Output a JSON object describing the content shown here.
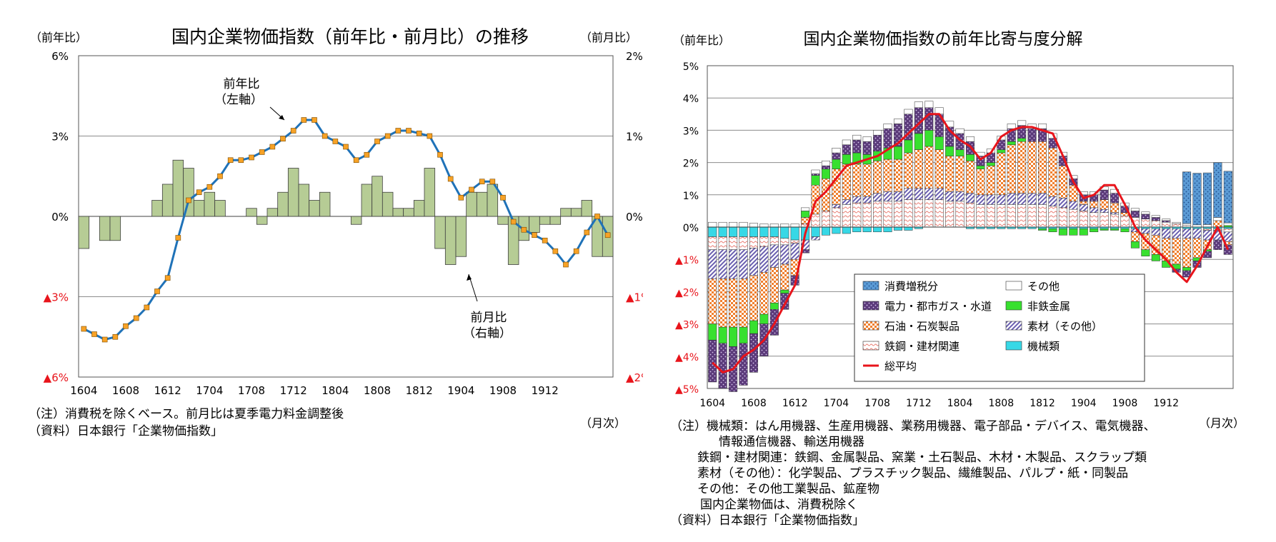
{
  "chart_data": [
    {
      "type": "bar+line",
      "title": "国内企業物価指数（前年比・前月比）の推移",
      "ylabel_left": "（前年比）",
      "ylabel_right": "（前月比）",
      "xlabel": "（月次）",
      "ylim_left": [
        -6,
        6
      ],
      "ylim_right": [
        -2,
        2
      ],
      "yticks_left": [
        "6%",
        "3%",
        "0%",
        "▲3%",
        "▲6%"
      ],
      "yticks_right": [
        "2%",
        "1%",
        "0%",
        "▲1%",
        "▲2%"
      ],
      "xticks": [
        "1604",
        "1608",
        "1612",
        "1704",
        "1708",
        "1712",
        "1804",
        "1808",
        "1812",
        "1904",
        "1908",
        "1912"
      ],
      "annotations": [
        "前年比",
        "（左軸）",
        "前月比",
        "（右軸）"
      ],
      "series": [
        {
          "name": "前年比",
          "axis": "left",
          "kind": "line",
          "values": [
            -4.2,
            -4.4,
            -4.6,
            -4.5,
            -4.1,
            -3.8,
            -3.4,
            -2.8,
            -2.3,
            -0.8,
            0.6,
            0.9,
            1.1,
            1.5,
            2.1,
            2.1,
            2.2,
            2.4,
            2.6,
            2.9,
            3.2,
            3.6,
            3.6,
            3.0,
            2.8,
            2.6,
            2.1,
            2.3,
            2.8,
            3.0,
            3.2,
            3.2,
            3.1,
            3.0,
            2.3,
            1.4,
            0.7,
            1.0,
            1.3,
            1.3,
            0.7,
            -0.2,
            -0.5,
            -0.7,
            -0.9,
            -1.3,
            -1.8,
            -1.3,
            -0.6,
            0.0,
            -0.7
          ]
        },
        {
          "name": "前月比",
          "axis": "right",
          "kind": "bar",
          "values": [
            -0.4,
            0.0,
            -0.3,
            -0.3,
            0.0,
            0.0,
            0.0,
            0.2,
            0.4,
            0.7,
            0.6,
            0.2,
            0.3,
            0.2,
            0.0,
            0.0,
            0.1,
            -0.1,
            0.1,
            0.3,
            0.6,
            0.4,
            0.2,
            0.3,
            0.0,
            0.0,
            -0.1,
            0.4,
            0.5,
            0.3,
            0.1,
            0.1,
            0.2,
            0.6,
            -0.4,
            -0.6,
            -0.5,
            0.3,
            0.3,
            0.4,
            -0.1,
            -0.6,
            -0.3,
            -0.2,
            -0.1,
            -0.1,
            0.1,
            0.1,
            0.2,
            -0.5,
            -0.5
          ]
        }
      ]
    },
    {
      "type": "stacked-bar+line",
      "title": "国内企業物価指数の前年比寄与度分解",
      "ylabel": "（前年比）",
      "xlabel": "（月次）",
      "ylim": [
        -5,
        5
      ],
      "yticks": [
        "5%",
        "4%",
        "3%",
        "2%",
        "1%",
        "0%",
        "▲1%",
        "▲2%",
        "▲3%",
        "▲4%",
        "▲5%"
      ],
      "xticks": [
        "1604",
        "1608",
        "1612",
        "1704",
        "1708",
        "1712",
        "1804",
        "1808",
        "1812",
        "1904",
        "1908",
        "1912"
      ],
      "legend_position": "bottom-center",
      "total_name": "総平均",
      "series": [
        {
          "key": "tax",
          "name": "消費増税分",
          "color": "#5b9bd5",
          "values": [
            0,
            0,
            0,
            0,
            0,
            0,
            0,
            0,
            0,
            0,
            0,
            0,
            0,
            0,
            0,
            0,
            0,
            0,
            0,
            0,
            0,
            0,
            0,
            0,
            0,
            0,
            0,
            0,
            0,
            0,
            0,
            0,
            0,
            0,
            0,
            0,
            0,
            0,
            0,
            0,
            0,
            0,
            0,
            0,
            0,
            0,
            1.6,
            1.6,
            1.6,
            1.7,
            1.6
          ]
        },
        {
          "key": "other",
          "name": "その他",
          "color": "#ffffff",
          "values": [
            0.15,
            0.15,
            0.15,
            0.15,
            0.12,
            0.1,
            0.1,
            0.1,
            0.1,
            0.1,
            0.12,
            0.15,
            0.15,
            0.15,
            0.15,
            0.15,
            0.15,
            0.15,
            0.15,
            0.15,
            0.18,
            0.2,
            0.2,
            0.18,
            0.15,
            0.15,
            0.12,
            0.12,
            0.12,
            0.15,
            0.15,
            0.15,
            0.15,
            0.15,
            0.12,
            0.1,
            0.1,
            0.1,
            0.1,
            0.12,
            0.1,
            0.08,
            0.07,
            0.06,
            0.05,
            0.05,
            0.06,
            0.07,
            0.08,
            0.1,
            0.08
          ]
        },
        {
          "key": "elec",
          "name": "電力・都市ガス・水道",
          "color": "#5b3a7a",
          "values": [
            -1.3,
            -1.4,
            -1.4,
            -1.3,
            -1.2,
            -1.0,
            -0.8,
            -0.5,
            -0.3,
            -0.1,
            0.05,
            0.1,
            0.2,
            0.3,
            0.4,
            0.4,
            0.5,
            0.6,
            0.7,
            0.8,
            0.8,
            0.7,
            0.7,
            0.6,
            0.5,
            0.4,
            0.3,
            0.3,
            0.3,
            0.4,
            0.4,
            0.4,
            0.4,
            0.3,
            0.3,
            0.2,
            0.2,
            0.2,
            0.3,
            0.3,
            0.2,
            0.2,
            0.15,
            0.1,
            0.05,
            -0.1,
            -0.2,
            -0.2,
            -0.2,
            -0.3,
            -0.3
          ]
        },
        {
          "key": "nonfer",
          "name": "非鉄金属",
          "color": "#38e02f",
          "values": [
            -0.5,
            -0.5,
            -0.6,
            -0.5,
            -0.4,
            -0.3,
            -0.2,
            -0.1,
            0.0,
            0.2,
            0.3,
            0.3,
            0.3,
            0.3,
            0.35,
            0.3,
            0.3,
            0.35,
            0.4,
            0.4,
            0.5,
            0.5,
            0.4,
            0.3,
            0.2,
            0.2,
            0.1,
            0.1,
            0.1,
            0.1,
            0.1,
            0.0,
            -0.05,
            -0.1,
            -0.2,
            -0.2,
            -0.2,
            -0.1,
            -0.05,
            -0.05,
            -0.1,
            -0.2,
            -0.2,
            -0.2,
            -0.2,
            -0.15,
            -0.1,
            -0.1,
            -0.05,
            0.0,
            0.05
          ]
        },
        {
          "key": "oil",
          "name": "石油・石炭製品",
          "color": "#f07f2d",
          "values": [
            -1.4,
            -1.5,
            -1.5,
            -1.5,
            -1.4,
            -1.3,
            -1.1,
            -0.8,
            -0.5,
            0.2,
            0.9,
            1.0,
            1.1,
            1.1,
            1.0,
            1.0,
            1.0,
            1.0,
            1.0,
            1.1,
            1.2,
            1.3,
            1.2,
            1.1,
            1.1,
            1.0,
            0.8,
            0.9,
            1.3,
            1.5,
            1.6,
            1.6,
            1.6,
            1.5,
            1.0,
            0.5,
            0.1,
            0.2,
            0.3,
            0.3,
            0.1,
            -0.3,
            -0.5,
            -0.6,
            -0.7,
            -0.8,
            -0.9,
            -0.6,
            -0.3,
            0.2,
            -0.1
          ]
        },
        {
          "key": "other_mat",
          "name": "素材（その他）",
          "color": "#8a7fc4",
          "values": [
            -0.9,
            -0.9,
            -0.9,
            -0.9,
            -0.85,
            -0.8,
            -0.7,
            -0.6,
            -0.5,
            -0.3,
            -0.1,
            0.0,
            0.1,
            0.15,
            0.2,
            0.2,
            0.25,
            0.3,
            0.3,
            0.35,
            0.35,
            0.35,
            0.35,
            0.3,
            0.3,
            0.3,
            0.3,
            0.3,
            0.3,
            0.35,
            0.35,
            0.35,
            0.35,
            0.3,
            0.3,
            0.25,
            0.2,
            0.15,
            0.1,
            0.05,
            0.0,
            -0.1,
            -0.15,
            -0.2,
            -0.3,
            -0.3,
            -0.3,
            -0.3,
            -0.3,
            -0.3,
            -0.3
          ]
        },
        {
          "key": "steel",
          "name": "鉄鋼・建材関連",
          "color": "#f4a7a0",
          "values": [
            -0.4,
            -0.4,
            -0.4,
            -0.4,
            -0.35,
            -0.3,
            -0.25,
            -0.2,
            -0.1,
            0.1,
            0.4,
            0.5,
            0.6,
            0.7,
            0.75,
            0.75,
            0.8,
            0.8,
            0.8,
            0.85,
            0.85,
            0.85,
            0.85,
            0.8,
            0.8,
            0.75,
            0.7,
            0.7,
            0.7,
            0.7,
            0.7,
            0.7,
            0.7,
            0.65,
            0.6,
            0.55,
            0.5,
            0.45,
            0.45,
            0.4,
            0.35,
            0.3,
            0.25,
            0.2,
            0.15,
            0.1,
            0.05,
            0.0,
            -0.05,
            -0.05,
            -0.1
          ]
        },
        {
          "key": "mach",
          "name": "機械類",
          "color": "#37d8e6",
          "values": [
            -0.3,
            -0.3,
            -0.3,
            -0.3,
            -0.3,
            -0.3,
            -0.3,
            -0.35,
            -0.4,
            -0.4,
            -0.3,
            -0.25,
            -0.2,
            -0.2,
            -0.15,
            -0.15,
            -0.15,
            -0.15,
            -0.1,
            -0.1,
            -0.05,
            0.0,
            0.0,
            0.0,
            0.0,
            -0.05,
            -0.05,
            -0.05,
            -0.05,
            -0.05,
            -0.05,
            -0.05,
            -0.05,
            -0.05,
            -0.05,
            -0.05,
            -0.05,
            -0.05,
            -0.05,
            -0.05,
            -0.05,
            -0.05,
            -0.05,
            -0.05,
            -0.05,
            -0.05,
            -0.05,
            -0.05,
            -0.05,
            -0.05,
            -0.05
          ]
        }
      ],
      "total": [
        -4.2,
        -4.5,
        -4.4,
        -4.0,
        -3.8,
        -3.5,
        -3.0,
        -2.4,
        -1.8,
        -0.2,
        0.8,
        1.1,
        1.5,
        1.9,
        2.0,
        2.1,
        2.2,
        2.4,
        2.6,
        2.9,
        3.2,
        3.5,
        3.5,
        3.0,
        2.7,
        2.5,
        2.1,
        2.3,
        2.8,
        3.0,
        3.1,
        3.1,
        3.0,
        2.9,
        2.2,
        1.4,
        0.9,
        1.0,
        1.3,
        1.3,
        0.7,
        0.0,
        -0.4,
        -0.7,
        -1.0,
        -1.4,
        -1.7,
        -1.2,
        -0.6,
        0.0,
        -0.7
      ]
    }
  ],
  "notes": {
    "left": [
      "（注）消費税を除くベース。前月比は夏季電力料金調整後",
      "（資料）日本銀行「企業物価指数」"
    ],
    "right": [
      "（注）機械類：はん用機器、生産用機器、業務用機器、電子部品・デバイス、電気機器、",
      "情報通信機器、輸送用機器",
      "鉄鋼・建材関連：鉄鋼、金属製品、窯業・土石製品、木材・木製品、スクラップ類",
      "素材（その他）：化学製品、プラスチック製品、繊維製品、パルプ・紙・同製品",
      "その他：その他工業製品、鉱産物",
      "国内企業物価は、消費税除く",
      "（資料）日本銀行「企業物価指数」"
    ]
  },
  "colors": {
    "line": "#1f72b8",
    "marker": "#f7a226",
    "bar": "#b6cc95",
    "total": "#e8141b",
    "triangle": "#e8141b"
  }
}
